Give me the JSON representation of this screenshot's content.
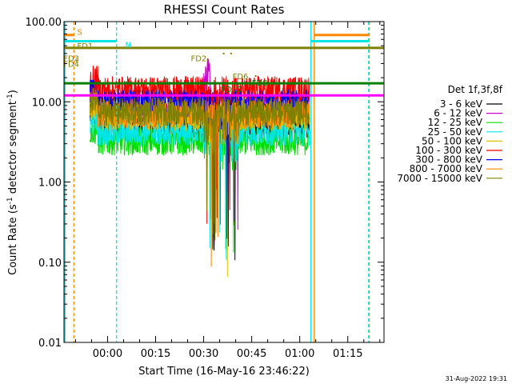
{
  "chart_data": {
    "type": "line",
    "title": "RHESSI Count Rates",
    "xlabel": "Start Time (16-May-16 23:46:22)",
    "ylabel_main": "Count Rate (s",
    "ylabel_sup": "-1",
    "ylabel_tail": " detector segment",
    "ylabel_sup2": "-1",
    "ylabel_close": ")",
    "yscale": "log",
    "ylim": [
      0.01,
      100
    ],
    "yticks": [
      {
        "value": 100,
        "label": "100.00"
      },
      {
        "value": 10,
        "label": "10.00"
      },
      {
        "value": 1,
        "label": "1.00"
      },
      {
        "value": 0.1,
        "label": "0.10"
      },
      {
        "value": 0.01,
        "label": "0.01"
      }
    ],
    "xlim_minutes": [
      -13.6,
      86.3
    ],
    "xticks": [
      {
        "value": 0,
        "label": "00:00"
      },
      {
        "value": 15,
        "label": "00:15"
      },
      {
        "value": 30,
        "label": "00:30"
      },
      {
        "value": 45,
        "label": "00:45"
      },
      {
        "value": 60,
        "label": "01:00"
      },
      {
        "value": 75,
        "label": "01:15"
      }
    ],
    "legend_title": "Det 1f,3f,8f",
    "series": [
      {
        "name": "3 - 6 keV",
        "color": "#000000",
        "level": 5.0
      },
      {
        "name": "6 - 12 keV",
        "color": "#cc00cc",
        "level": 9.0
      },
      {
        "name": "12 - 25 keV",
        "color": "#00dd00",
        "level": 3.2
      },
      {
        "name": "25 - 50 keV",
        "color": "#00e5e5",
        "level": 4.2
      },
      {
        "name": "50 - 100 keV",
        "color": "#e5c000",
        "level": 6.5
      },
      {
        "name": "100 - 300 keV",
        "color": "#ee0000",
        "level": 14.0
      },
      {
        "name": "300 - 800 keV",
        "color": "#0000ee",
        "level": 9.5
      },
      {
        "name": "800 - 7000 keV",
        "color": "#ff8800",
        "level": 7.0
      },
      {
        "name": "7000 - 15000 keV",
        "color": "#808000",
        "level": 7.5
      }
    ],
    "reference_lines": [
      {
        "color": "#808000",
        "y": 47
      },
      {
        "color": "#008000",
        "y": 17
      },
      {
        "color": "#ff00ff",
        "y": 12
      }
    ],
    "annotations": [
      {
        "text": "S",
        "color": "#ff8800"
      },
      {
        "text": "N",
        "color": "#00e5e5"
      },
      {
        "text": "FD1",
        "color": "#808000"
      },
      {
        "text": "FD2",
        "color": "#808000"
      },
      {
        "text": "FD3",
        "color": "#808000"
      },
      {
        "text": "FD4",
        "color": "#808000"
      },
      {
        "text": "FD6",
        "color": "#808000"
      },
      {
        "text": "FD8",
        "color": "#008000"
      },
      {
        "text": "FD10",
        "color": "#008000"
      }
    ],
    "timestamp": "31-Aug-2022 19:31"
  }
}
